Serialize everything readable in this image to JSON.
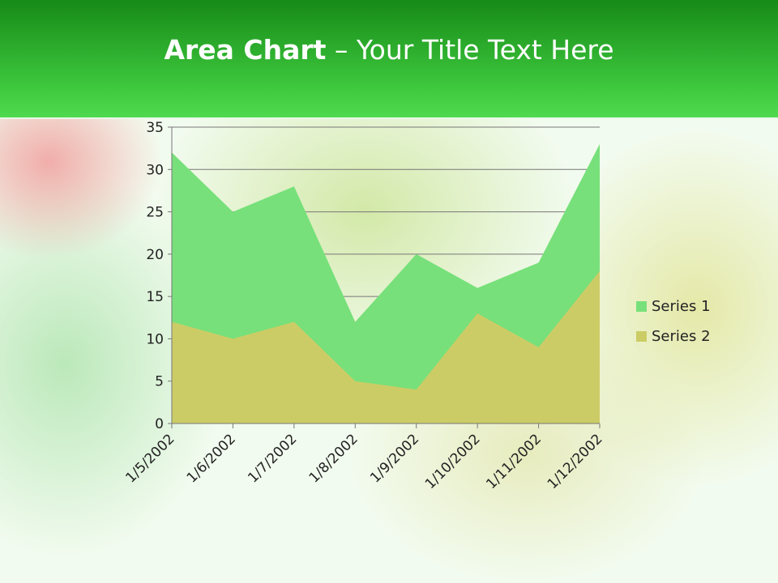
{
  "slide": {
    "title_bold": "Area Chart",
    "title_rest": " – Your Title Text Here"
  },
  "chart_data": {
    "type": "area",
    "categories": [
      "1/5/2002",
      "1/6/2002",
      "1/7/2002",
      "1/8/2002",
      "1/9/2002",
      "1/10/2002",
      "1/11/2002",
      "1/12/2002"
    ],
    "series": [
      {
        "name": "Series 1",
        "color": "#77e07a",
        "values": [
          32,
          25,
          28,
          12,
          20,
          16,
          19,
          33
        ]
      },
      {
        "name": "Series 2",
        "color": "#cccc66",
        "values": [
          12,
          10,
          12,
          5,
          4,
          13,
          9,
          18
        ]
      }
    ],
    "ylim": [
      0,
      35
    ],
    "yticks": [
      "0",
      "5",
      "10",
      "15",
      "20",
      "25",
      "30",
      "35"
    ],
    "grid": true,
    "legend": "right"
  }
}
